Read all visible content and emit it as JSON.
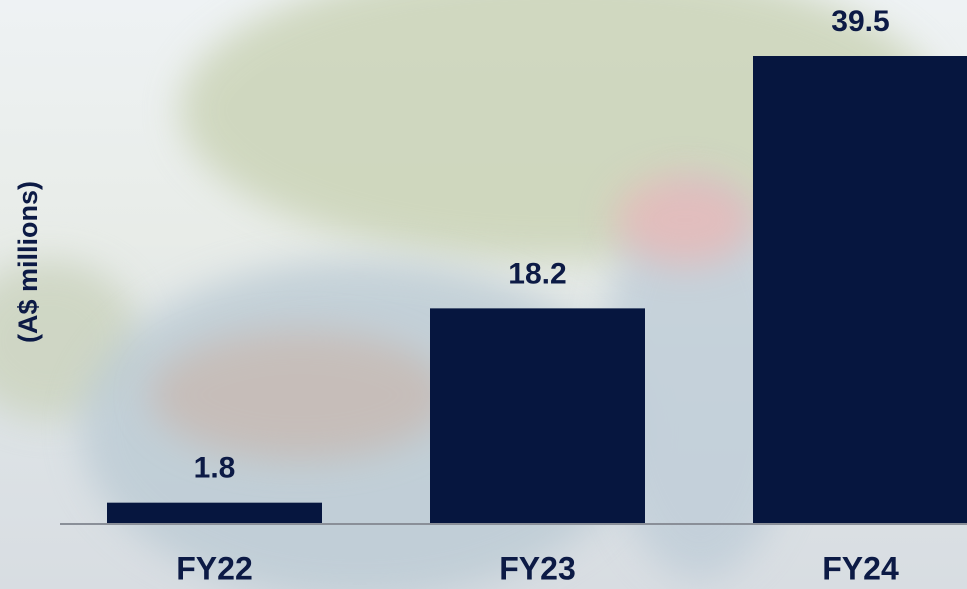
{
  "chart_data": {
    "type": "bar",
    "y_axis_label": "(A$ millions)",
    "categories": [
      "FY22",
      "FY23",
      "FY24"
    ],
    "values": [
      1.8,
      18.2,
      39.5
    ],
    "color": "#06163f",
    "ylim": [
      0,
      39.5
    ],
    "show_value_labels": true
  }
}
